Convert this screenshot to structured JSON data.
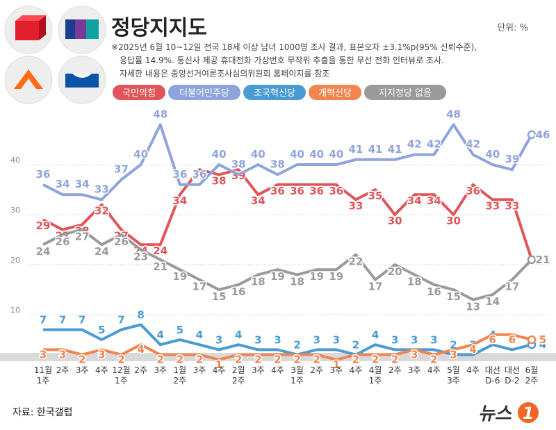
{
  "chart_data": {
    "type": "line",
    "title": "정당지지도",
    "unit": "단위: %",
    "notes": [
      "※2025년 6월 10~12일 전국 18세 이상 남녀 1000명 조사 결과, 표본오차 ±3.1%p(95% 신뢰수준),",
      "응답률 14.9%. 통신사 제공 휴대전화 가상번호 무작위 추출을 통한 무선 전화 인터뷰로 조사.",
      "자세한 내용은 중앙선거여론조사심의위원회 홈페이지를 참조"
    ],
    "source": "자료: 한국갤럽",
    "logo": [
      "뉴스",
      "1"
    ],
    "categories": [
      "11월\n1주",
      "2주",
      "3주",
      "4주",
      "12월\n1주",
      "2주",
      "3주",
      "1월\n2주",
      "3주",
      "4주",
      "2월\n2주",
      "3주",
      "4주",
      "3월\n1주",
      "2주",
      "3주",
      "4주",
      "4월\n1주",
      "2주",
      "3주",
      "4주",
      "5월\n3주",
      "4주",
      "대선\nD-6",
      "대선\nD-2",
      "6월\n2주"
    ],
    "series": [
      {
        "name": "국민의힘",
        "color": "#e0555a",
        "values": [
          29,
          27,
          28,
          32,
          27,
          24,
          24,
          34,
          39,
          38,
          39,
          34,
          36,
          36,
          36,
          36,
          33,
          35,
          30,
          34,
          34,
          30,
          36,
          33,
          33,
          21
        ]
      },
      {
        "name": "더불어민주당",
        "color": "#8fa3dc",
        "values": [
          36,
          34,
          34,
          33,
          37,
          40,
          48,
          36,
          36,
          40,
          38,
          40,
          38,
          40,
          40,
          40,
          41,
          41,
          41,
          42,
          42,
          48,
          42,
          40,
          39,
          46
        ]
      },
      {
        "name": "조국혁신당",
        "color": "#4a9bd4",
        "values": [
          7,
          7,
          7,
          5,
          7,
          8,
          4,
          5,
          4,
          3,
          4,
          3,
          3,
          2,
          3,
          3,
          2,
          4,
          3,
          3,
          3,
          2,
          2,
          4,
          3,
          4
        ]
      },
      {
        "name": "개혁신당",
        "color": "#f08550",
        "values": [
          3,
          3,
          2,
          3,
          2,
          4,
          2,
          2,
          2,
          1,
          2,
          2,
          2,
          2,
          2,
          1,
          2,
          2,
          2,
          3,
          2,
          3,
          4,
          6,
          6,
          5
        ]
      },
      {
        "name": "지지정당 없음",
        "color": "#9a9a9a",
        "values": [
          24,
          26,
          27,
          24,
          26,
          23,
          21,
          19,
          17,
          15,
          16,
          18,
          19,
          18,
          19,
          19,
          22,
          17,
          20,
          18,
          16,
          15,
          13,
          14,
          17,
          21
        ]
      }
    ],
    "ylim": [
      0,
      50
    ],
    "yticks": [
      10,
      20,
      30,
      40
    ],
    "grid": true
  }
}
